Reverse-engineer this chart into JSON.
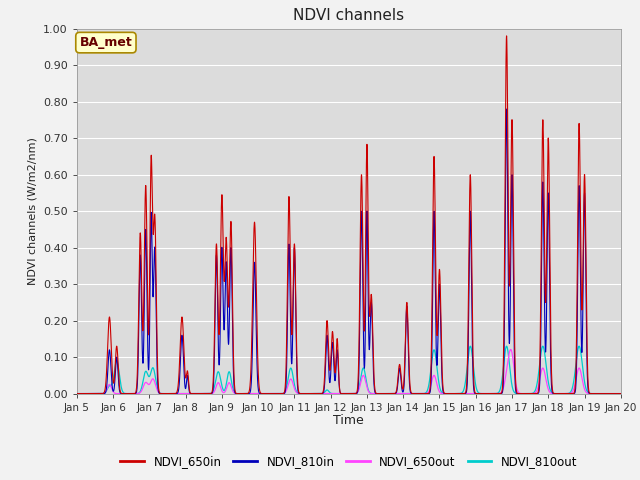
{
  "title": "NDVI channels",
  "ylabel": "NDVI channels (W/m2/nm)",
  "xlabel": "Time",
  "annotation": "BA_met",
  "ylim": [
    0.0,
    1.0
  ],
  "x_tick_labels": [
    "Jan 5",
    "Jan 6",
    "Jan 7",
    "Jan 8",
    "Jan 9",
    "Jan 10",
    "Jan 11",
    "Jan 12",
    "Jan 13",
    "Jan 14",
    "Jan 15",
    "Jan 16",
    "Jan 17",
    "Jan 18",
    "Jan 19",
    "Jan 20"
  ],
  "colors": {
    "NDVI_650in": "#cc0000",
    "NDVI_810in": "#0000bb",
    "NDVI_650out": "#ff44ff",
    "NDVI_810out": "#00cccc"
  },
  "fig_bg": "#f2f2f2",
  "plot_bg": "#dcdcdc",
  "grid_color": "#ffffff",
  "annotation_bg": "#ffffcc",
  "annotation_border": "#aa8800",
  "annotation_text_color": "#660000",
  "spine_color": "#999999"
}
